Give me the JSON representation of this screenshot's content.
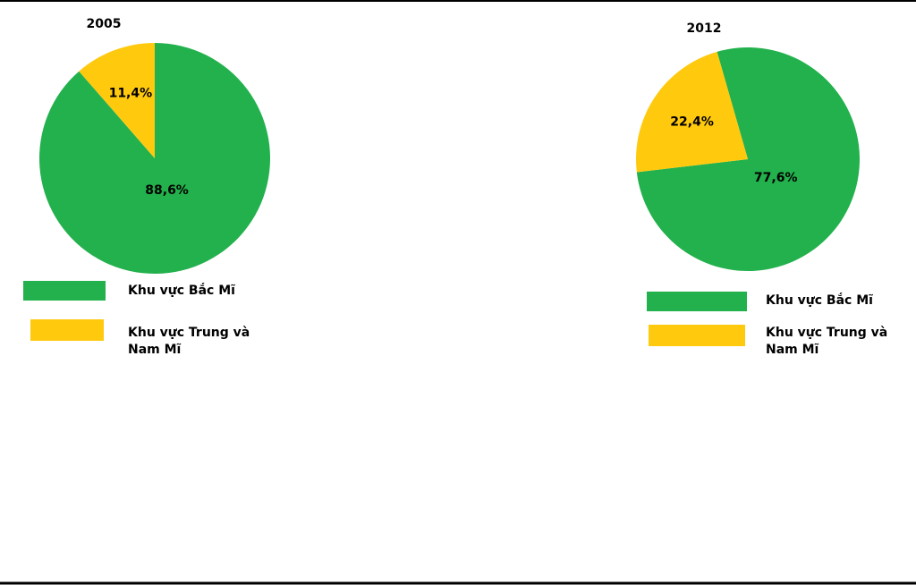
{
  "chart_data": [
    {
      "type": "pie",
      "title": "2005",
      "categories": [
        "Khu vực Bắc Mĩ",
        "Khu vực Trung và Nam Mĩ"
      ],
      "values": [
        88.6,
        11.4
      ],
      "value_labels": [
        "88,6%",
        "11,4%"
      ],
      "colors": [
        "#22b14c",
        "#ffc90e"
      ],
      "start_angle": 0
    },
    {
      "type": "pie",
      "title": "2012",
      "categories": [
        "Khu vực Bắc Mĩ",
        "Khu vực Trung và Nam Mĩ"
      ],
      "values": [
        77.6,
        22.4
      ],
      "value_labels": [
        "77,6%",
        "22,4%"
      ],
      "colors": [
        "#22b14c",
        "#ffc90e"
      ],
      "start_angle": -16
    }
  ]
}
